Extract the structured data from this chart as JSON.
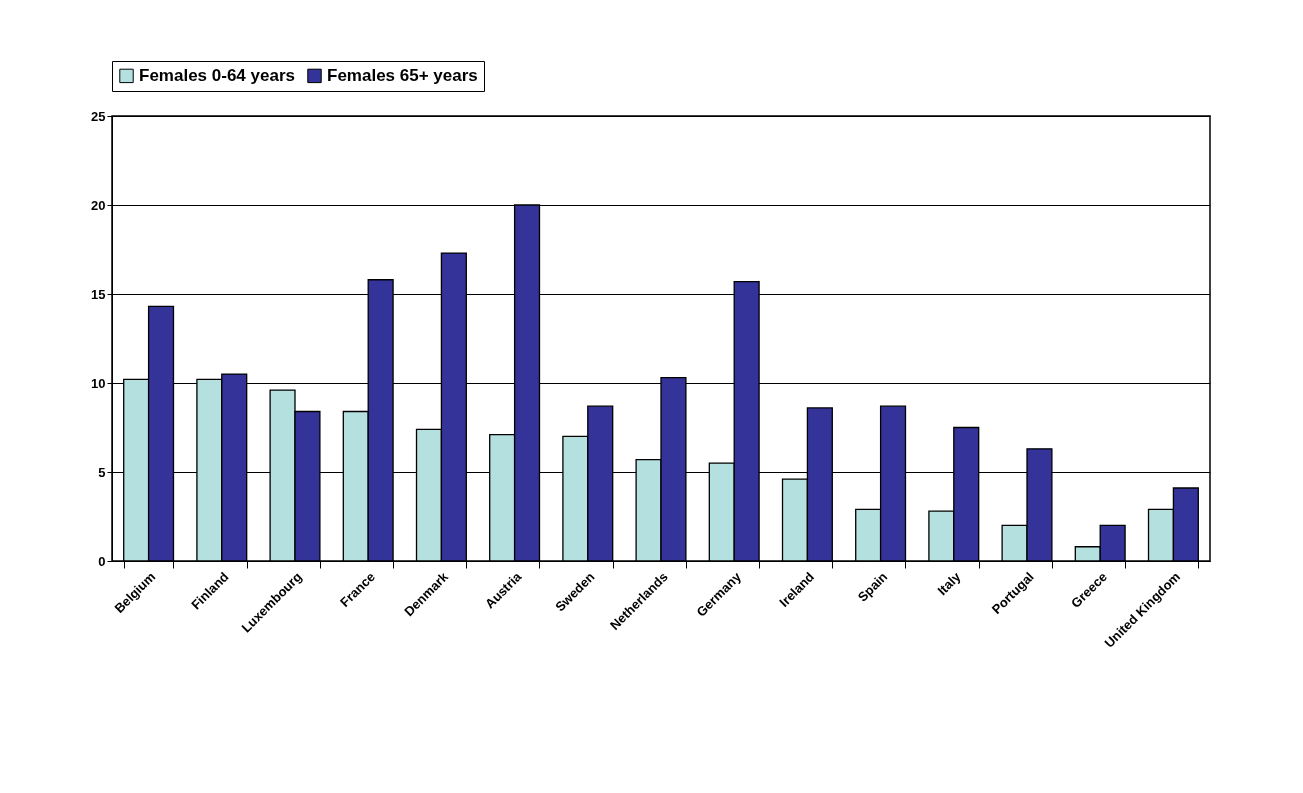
{
  "chart_data": {
    "type": "bar",
    "categories": [
      "Belgium",
      "Finland",
      "Luxembourg",
      "France",
      "Denmark",
      "Austria",
      "Sweden",
      "Netherlands",
      "Germany",
      "Ireland",
      "Spain",
      "Italy",
      "Portugal",
      "Greece",
      "United Kingdom"
    ],
    "series": [
      {
        "name": "Females 0-64 years",
        "color": "#b4e0e0",
        "values": [
          10.2,
          10.2,
          9.6,
          8.4,
          7.4,
          7.1,
          7.0,
          5.7,
          5.5,
          4.6,
          2.9,
          2.8,
          2.0,
          0.8,
          2.9
        ]
      },
      {
        "name": "Females 65+ years",
        "color": "#333399",
        "values": [
          14.3,
          10.5,
          8.4,
          15.8,
          17.3,
          20.0,
          8.7,
          10.3,
          15.7,
          8.6,
          8.7,
          7.5,
          6.3,
          2.0,
          4.1
        ]
      }
    ],
    "ylim": [
      0,
      25
    ],
    "yticks": [
      0,
      5,
      10,
      15,
      20,
      25
    ],
    "grid": "y",
    "legend": "top"
  }
}
